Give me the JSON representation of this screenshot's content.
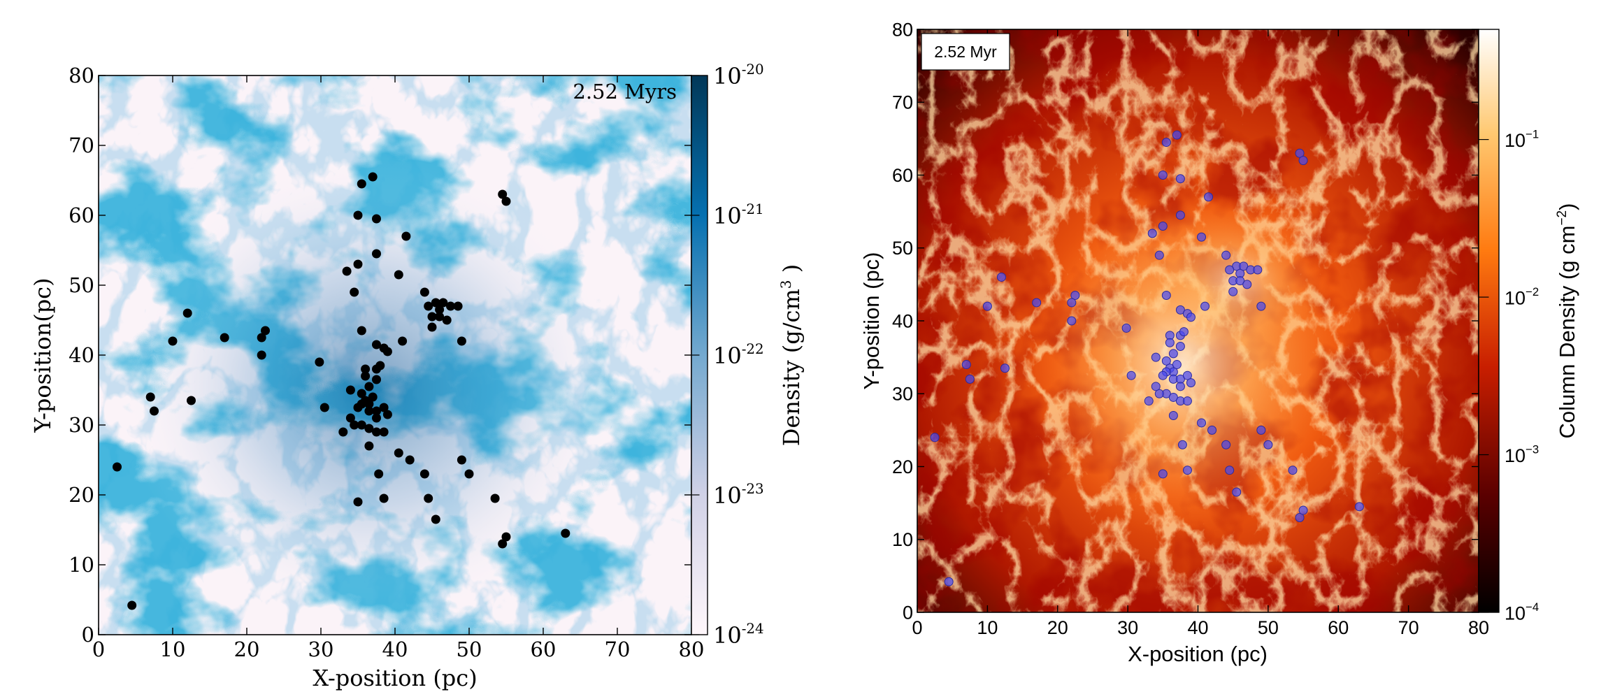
{
  "chart_data": [
    {
      "type": "scatter",
      "panel": "left",
      "title": "",
      "time_label": "2.52 Myrs",
      "xlabel": "X-position (pc)",
      "ylabel": "Y-position(pc)",
      "xlim": [
        0,
        80
      ],
      "ylim": [
        0,
        80
      ],
      "xticks": [
        0,
        10,
        20,
        30,
        40,
        50,
        60,
        70,
        80
      ],
      "yticks": [
        0,
        10,
        20,
        30,
        40,
        50,
        60,
        70,
        80
      ],
      "colorbar": {
        "label": "Density (g/cm",
        "label_sup": "3",
        "label_end": " )",
        "scale": "log",
        "range": [
          1e-24,
          1e-20
        ],
        "ticks": [
          {
            "base": "10",
            "exp": "-24",
            "value": -24
          },
          {
            "base": "10",
            "exp": "-23",
            "value": -23
          },
          {
            "base": "10",
            "exp": "-22",
            "value": -22
          },
          {
            "base": "10",
            "exp": "-21",
            "value": -21
          },
          {
            "base": "10",
            "exp": "-20",
            "value": -20
          }
        ],
        "colormap": [
          "#fff7fb",
          "#d0d1e6",
          "#74a9cf",
          "#0570b0",
          "#023858"
        ]
      },
      "marker_color": "#000000",
      "grid": false
    },
    {
      "type": "scatter",
      "panel": "right",
      "title": "",
      "time_label": "2.52 Myr",
      "xlabel": "X-position (pc)",
      "ylabel": "Y-position (pc)",
      "xlim": [
        0,
        80
      ],
      "ylim": [
        0,
        80
      ],
      "xticks": [
        0,
        10,
        20,
        30,
        40,
        50,
        60,
        70,
        80
      ],
      "yticks": [
        0,
        10,
        20,
        30,
        40,
        50,
        60,
        70,
        80
      ],
      "colorbar": {
        "label": "Column Density (g cm",
        "label_sup": "−2",
        "label_end": ")",
        "scale": "log",
        "range": [
          0.0001,
          0.5
        ],
        "ticks": [
          {
            "base": "10",
            "exp": "−4",
            "value": -4
          },
          {
            "base": "10",
            "exp": "−3",
            "value": -3
          },
          {
            "base": "10",
            "exp": "−2",
            "value": -2
          },
          {
            "base": "10",
            "exp": "−1",
            "value": -1
          }
        ],
        "colormap": [
          "#000000",
          "#5a0000",
          "#c81e00",
          "#ff7a10",
          "#ffc870",
          "#ffffff"
        ]
      },
      "marker_color": "#4a4af0",
      "grid": false
    }
  ],
  "particles": [
    [
      37,
      65.5
    ],
    [
      35.5,
      64.5
    ],
    [
      37.5,
      59.5
    ],
    [
      35,
      60
    ],
    [
      54.5,
      63
    ],
    [
      55,
      62
    ],
    [
      41.5,
      57
    ],
    [
      37.5,
      54.5
    ],
    [
      35,
      53
    ],
    [
      33.5,
      52
    ],
    [
      40.5,
      51.5
    ],
    [
      34.5,
      49
    ],
    [
      44,
      49
    ],
    [
      45.5,
      47.5
    ],
    [
      46,
      46.5
    ],
    [
      46.5,
      47.5
    ],
    [
      47.5,
      47
    ],
    [
      48.5,
      47
    ],
    [
      44.5,
      47
    ],
    [
      45,
      45.5
    ],
    [
      46,
      45.5
    ],
    [
      47,
      45
    ],
    [
      45,
      44
    ],
    [
      12,
      46
    ],
    [
      17,
      42.5
    ],
    [
      22.5,
      43.5
    ],
    [
      22,
      42.5
    ],
    [
      22,
      40
    ],
    [
      10,
      42
    ],
    [
      49,
      42
    ],
    [
      35.5,
      43.5
    ],
    [
      37.5,
      41.5
    ],
    [
      38.5,
      41
    ],
    [
      39,
      40.5
    ],
    [
      41,
      42
    ],
    [
      36,
      38
    ],
    [
      37.5,
      38
    ],
    [
      36,
      37
    ],
    [
      37.5,
      36.5
    ],
    [
      38,
      38.5
    ],
    [
      29.8,
      39
    ],
    [
      36.5,
      35.5
    ],
    [
      35.5,
      34.5
    ],
    [
      36,
      33.5
    ],
    [
      37,
      34
    ],
    [
      36.5,
      33
    ],
    [
      35.5,
      33
    ],
    [
      34,
      35
    ],
    [
      36.5,
      32
    ],
    [
      37.5,
      32
    ],
    [
      35,
      32.5
    ],
    [
      38.5,
      32.5
    ],
    [
      37.5,
      31
    ],
    [
      35.5,
      30
    ],
    [
      34.5,
      30
    ],
    [
      34,
      31
    ],
    [
      36.5,
      29.5
    ],
    [
      37.5,
      29
    ],
    [
      38.5,
      29
    ],
    [
      39,
      31.5
    ],
    [
      33,
      29
    ],
    [
      36.5,
      27
    ],
    [
      30.5,
      32.5
    ],
    [
      40.5,
      26
    ],
    [
      42,
      25
    ],
    [
      49,
      25
    ],
    [
      50,
      23
    ],
    [
      37.8,
      23
    ],
    [
      38.5,
      19.5
    ],
    [
      35,
      19
    ],
    [
      44,
      23
    ],
    [
      44.5,
      19.5
    ],
    [
      45.5,
      16.5
    ],
    [
      53.5,
      19.5
    ],
    [
      54.5,
      13
    ],
    [
      55,
      14
    ],
    [
      63,
      14.5
    ],
    [
      7,
      34
    ],
    [
      7.5,
      32
    ],
    [
      12.5,
      33.5
    ],
    [
      2.5,
      24
    ],
    [
      4.5,
      4.2
    ]
  ]
}
